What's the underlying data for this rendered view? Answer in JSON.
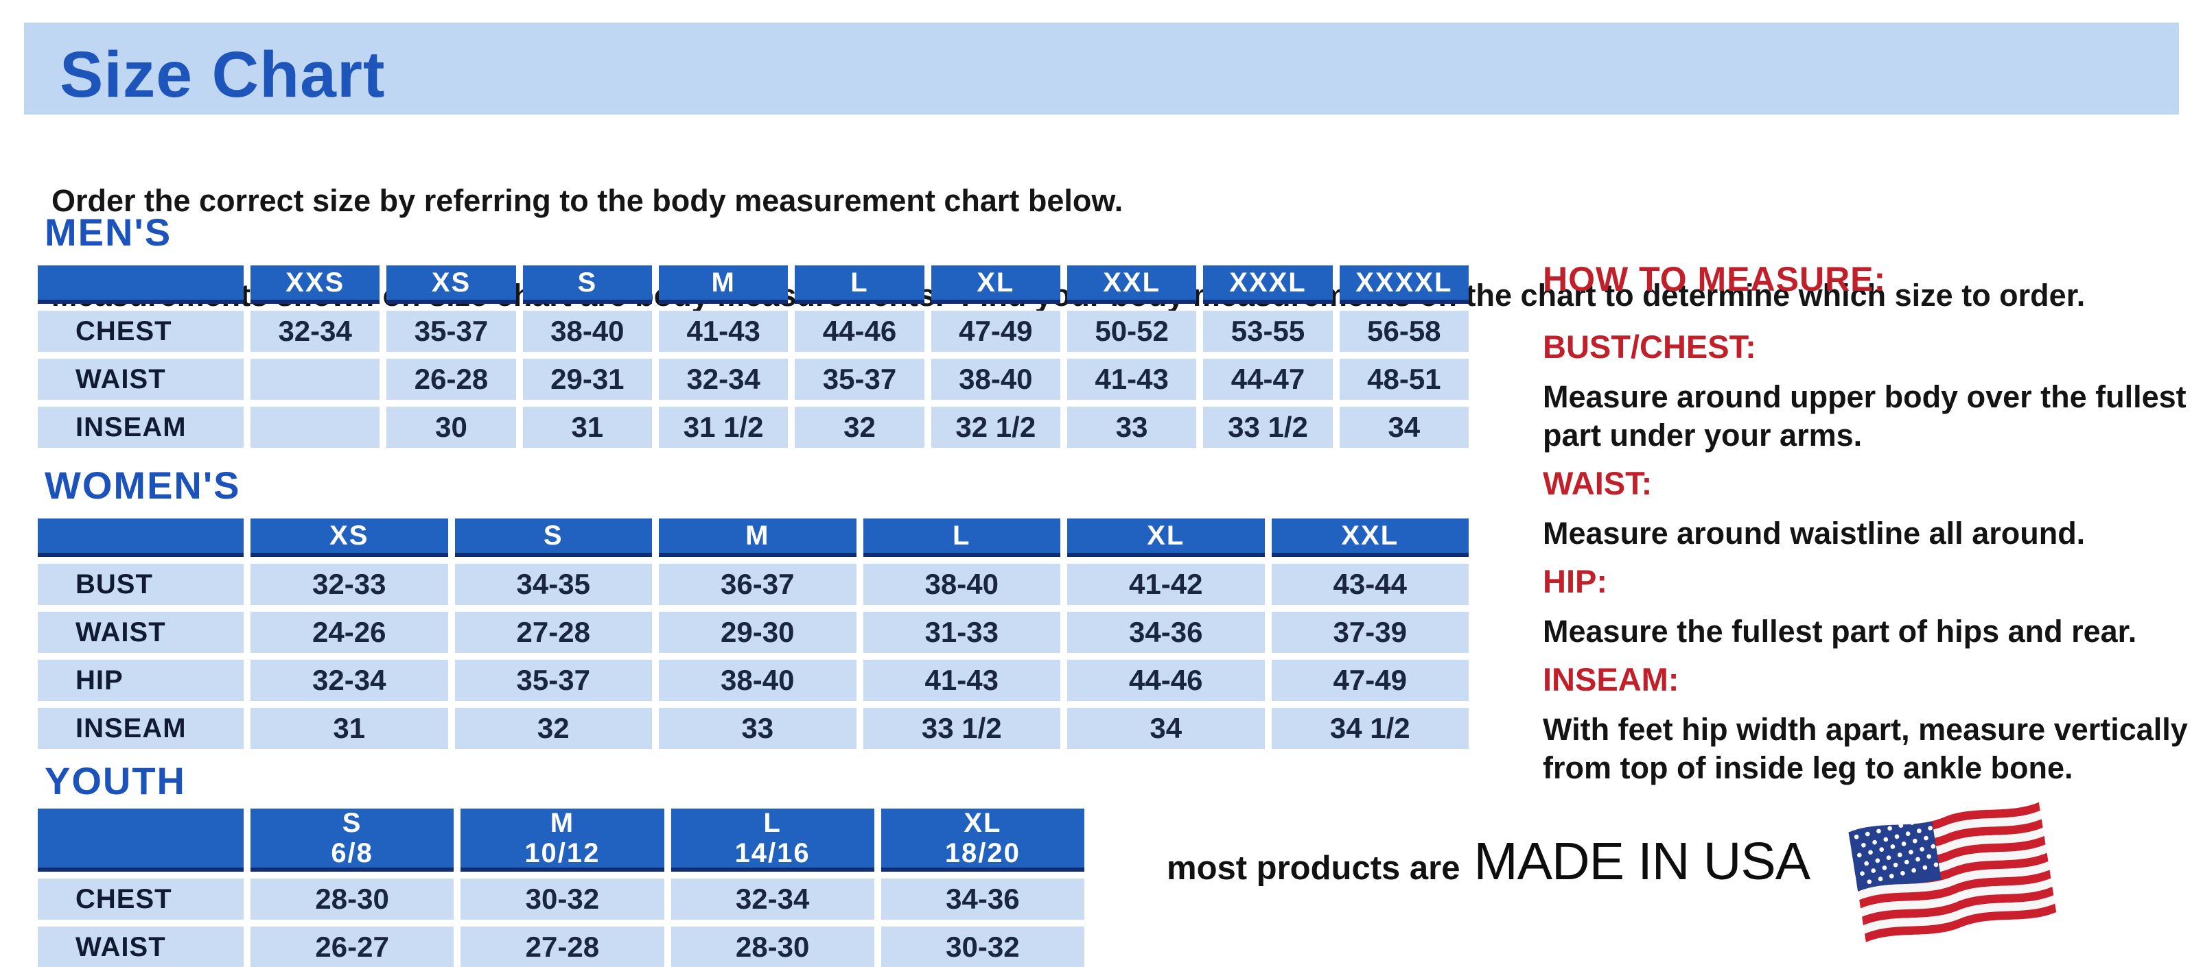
{
  "title": "Size Chart",
  "intro": {
    "line1": "Order the correct size by referring to the body measurement chart below.",
    "line2": "Measurements shown on size chart are body measurements.  Find your body measurements on the chart to determine which size to order."
  },
  "colors": {
    "title_bar_bg": "#c0d7f4",
    "heading_blue": "#1b52bc",
    "table_header_blue": "#2161c0",
    "table_header_border": "#0e2d74",
    "cell_light_blue": "#c9dcf4",
    "accent_red": "#c1202a",
    "flag_red": "#cc1f2e",
    "flag_blue": "#24408e"
  },
  "tables": [
    {
      "id": "mens",
      "heading": "MEN'S",
      "columns": [
        {
          "label": "XXS"
        },
        {
          "label": "XS"
        },
        {
          "label": "S"
        },
        {
          "label": "M"
        },
        {
          "label": "L"
        },
        {
          "label": "XL"
        },
        {
          "label": "XXL"
        },
        {
          "label": "XXXL"
        },
        {
          "label": "XXXXL"
        }
      ],
      "rows": [
        {
          "label": "CHEST",
          "values": [
            "32-34",
            "35-37",
            "38-40",
            "41-43",
            "44-46",
            "47-49",
            "50-52",
            "53-55",
            "56-58"
          ]
        },
        {
          "label": "WAIST",
          "values": [
            "",
            "26-28",
            "29-31",
            "32-34",
            "35-37",
            "38-40",
            "41-43",
            "44-47",
            "48-51"
          ]
        },
        {
          "label": "INSEAM",
          "values": [
            "",
            "30",
            "31",
            "31 1/2",
            "32",
            "32 1/2",
            "33",
            "33 1/2",
            "34"
          ]
        }
      ]
    },
    {
      "id": "womens",
      "heading": "WOMEN'S",
      "columns": [
        {
          "label": "XS"
        },
        {
          "label": "S"
        },
        {
          "label": "M"
        },
        {
          "label": "L"
        },
        {
          "label": "XL"
        },
        {
          "label": "XXL"
        }
      ],
      "rows": [
        {
          "label": "BUST",
          "values": [
            "32-33",
            "34-35",
            "36-37",
            "38-40",
            "41-42",
            "43-44"
          ]
        },
        {
          "label": "WAIST",
          "values": [
            "24-26",
            "27-28",
            "29-30",
            "31-33",
            "34-36",
            "37-39"
          ]
        },
        {
          "label": "HIP",
          "values": [
            "32-34",
            "35-37",
            "38-40",
            "41-43",
            "44-46",
            "47-49"
          ]
        },
        {
          "label": "INSEAM",
          "values": [
            "31",
            "32",
            "33",
            "33 1/2",
            "34",
            "34 1/2"
          ]
        }
      ]
    },
    {
      "id": "youth",
      "heading": "YOUTH",
      "columns": [
        {
          "label": "S",
          "range": "6/8"
        },
        {
          "label": "M",
          "range": "10/12"
        },
        {
          "label": "L",
          "range": "14/16"
        },
        {
          "label": "XL",
          "range": "18/20"
        }
      ],
      "rows": [
        {
          "label": "CHEST",
          "values": [
            "28-30",
            "30-32",
            "32-34",
            "34-36"
          ]
        },
        {
          "label": "WAIST",
          "values": [
            "26-27",
            "27-28",
            "28-30",
            "30-32"
          ]
        }
      ]
    }
  ],
  "how_to_measure": {
    "heading": "HOW TO MEASURE:",
    "items": [
      {
        "label": "BUST/CHEST:",
        "text": "Measure around upper body over the fullest part under your arms."
      },
      {
        "label": "WAIST:",
        "text": "Measure around waistline all around."
      },
      {
        "label": "HIP:",
        "text": "Measure the fullest part of hips and rear."
      },
      {
        "label": "INSEAM:",
        "text": "With feet hip width apart, measure vertically from top of inside leg to ankle bone."
      }
    ]
  },
  "made_in_usa": {
    "prefix": "most products are",
    "emphasis": "MADE IN USA",
    "icon": "us-flag-icon"
  }
}
